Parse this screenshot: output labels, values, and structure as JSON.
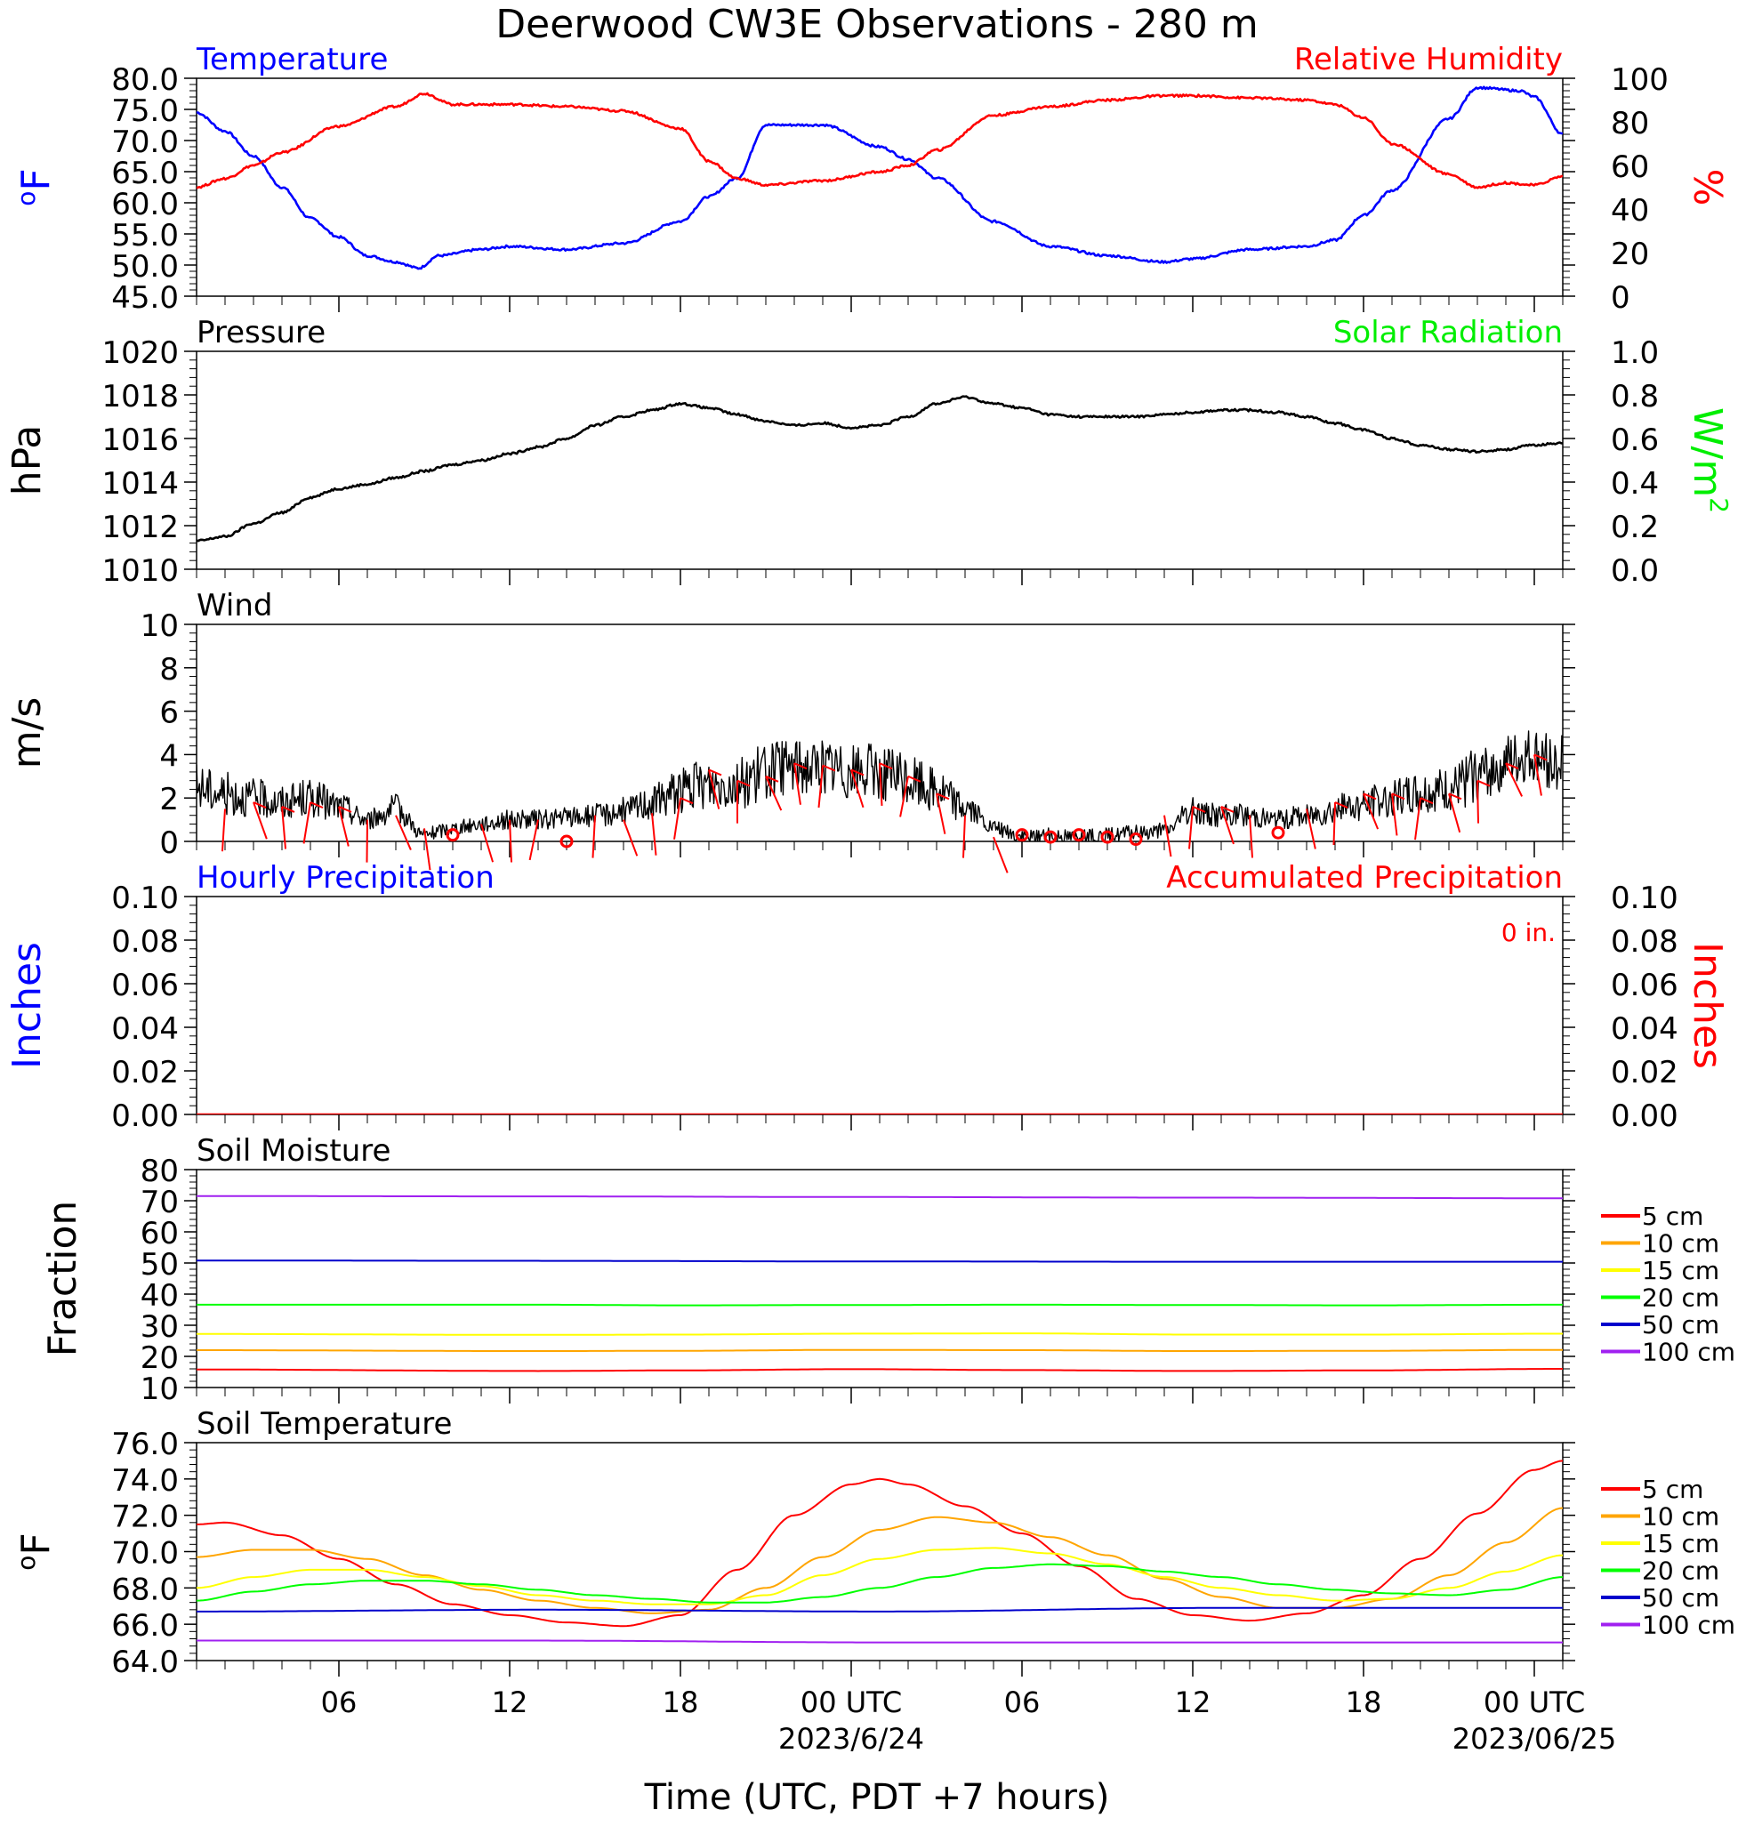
{
  "title": "Deerwood CW3E Observations - 280 m",
  "x_axis": {
    "label": "Time (UTC, PDT +7 hours)",
    "tick_labels": [
      "06",
      "12",
      "18",
      "00 UTC",
      "06",
      "12",
      "18",
      "00 UTC"
    ],
    "tick_hours": [
      6,
      12,
      18,
      24,
      30,
      36,
      42,
      48
    ],
    "date_labels": [
      "2023/6/24",
      "2023/06/25"
    ],
    "date_hours": [
      24,
      48
    ]
  },
  "colors": {
    "blue": "#0000ff",
    "red": "#ff0000",
    "green": "#00ee00",
    "black": "#000000",
    "soil_5cm": "#ff0000",
    "soil_10cm": "#ffa500",
    "soil_15cm": "#ffff00",
    "soil_20cm": "#00ff00",
    "soil_50cm": "#0000cc",
    "soil_100cm": "#a020f0"
  },
  "chart_data": [
    {
      "type": "line",
      "panel": "temperature-humidity",
      "left_title": "Temperature",
      "right_title": "Relative Humidity",
      "ylabel_left": "oF",
      "ylabel_right": "%",
      "ylim_left": [
        45,
        80
      ],
      "ylim_right": [
        0,
        100
      ],
      "yticks_left": [
        "80.0",
        "75.0",
        "70.0",
        "65.0",
        "60.0",
        "55.0",
        "50.0",
        "45.0"
      ],
      "yticks_right": [
        "100",
        "80",
        "60",
        "40",
        "20",
        "0"
      ],
      "series": [
        {
          "name": "Temperature",
          "axis": "left",
          "color": "#0000ff",
          "x": [
            1,
            2,
            3,
            4,
            5,
            6,
            7,
            8,
            8.8,
            9.5,
            11,
            12,
            14,
            16,
            18,
            19,
            20,
            21,
            23,
            25,
            26,
            27,
            29,
            31,
            33,
            35,
            36,
            38,
            40,
            41,
            42,
            43,
            45,
            46,
            47.5,
            48,
            49
          ],
          "values": [
            74.5,
            71.5,
            67.5,
            62.5,
            57.5,
            54.5,
            51.5,
            50.5,
            49.5,
            51.5,
            52.5,
            53,
            52.5,
            53.5,
            57,
            61,
            64,
            72.5,
            72.5,
            69,
            67,
            64,
            57,
            53,
            51.5,
            50.5,
            51,
            52.5,
            53,
            54,
            58,
            62,
            73.5,
            78.5,
            78,
            77,
            71
          ]
        },
        {
          "name": "Relative Humidity",
          "axis": "right",
          "color": "#ff0000",
          "x": [
            1,
            2,
            3,
            4,
            6,
            8,
            9,
            10,
            12,
            14,
            16,
            18,
            19,
            20,
            21,
            23,
            25,
            26,
            27,
            29,
            31,
            33,
            35,
            36,
            38,
            40,
            41,
            42,
            43,
            45,
            46,
            47,
            48,
            49
          ],
          "values": [
            50,
            54,
            60,
            66,
            78,
            87,
            93,
            88,
            88,
            87,
            85,
            77,
            62,
            54,
            51,
            53,
            57,
            60,
            67,
            83,
            87,
            90,
            92,
            92,
            91,
            90,
            88,
            82,
            70,
            56,
            50,
            52,
            51,
            55
          ]
        }
      ]
    },
    {
      "type": "line",
      "panel": "pressure-solar",
      "left_title": "Pressure",
      "right_title": "Solar Radiation",
      "ylabel_left": "hPa",
      "ylabel_right": "W/m",
      "ylabel_right_sup": "2",
      "ylim_left": [
        1010,
        1020
      ],
      "ylim_right": [
        0,
        1
      ],
      "yticks_left": [
        "1020",
        "1018",
        "1016",
        "1014",
        "1012",
        "1010"
      ],
      "yticks_right": [
        "1.0",
        "0.8",
        "0.6",
        "0.4",
        "0.2",
        "0.0"
      ],
      "series": [
        {
          "name": "Pressure",
          "axis": "left",
          "color": "#000000",
          "x": [
            1,
            2,
            3,
            4,
            5,
            6,
            7,
            8,
            9,
            10,
            11,
            12,
            13,
            14,
            15,
            16,
            17,
            18,
            19,
            20,
            21,
            22,
            23,
            24,
            25,
            26,
            27,
            28,
            29,
            30,
            31,
            32,
            33,
            34,
            35,
            36,
            37,
            38,
            39,
            40,
            41,
            42,
            43,
            44,
            45,
            46,
            47,
            48,
            49
          ],
          "values": [
            1011.3,
            1011.5,
            1012.1,
            1012.6,
            1013.3,
            1013.7,
            1013.9,
            1014.2,
            1014.5,
            1014.8,
            1015.0,
            1015.3,
            1015.6,
            1016.0,
            1016.6,
            1017.0,
            1017.3,
            1017.6,
            1017.4,
            1017.1,
            1016.8,
            1016.6,
            1016.7,
            1016.5,
            1016.6,
            1017.0,
            1017.6,
            1017.9,
            1017.6,
            1017.4,
            1017.1,
            1017.0,
            1017.0,
            1017.0,
            1017.1,
            1017.2,
            1017.3,
            1017.3,
            1017.2,
            1017.0,
            1016.7,
            1016.4,
            1016.0,
            1015.7,
            1015.5,
            1015.4,
            1015.5,
            1015.7,
            1015.8
          ]
        }
      ]
    },
    {
      "type": "line",
      "panel": "wind",
      "left_title": "Wind",
      "ylabel_left": "m/s",
      "ylim_left": [
        0,
        10
      ],
      "yticks_left": [
        "10",
        "8",
        "6",
        "4",
        "2",
        "0"
      ],
      "series": [
        {
          "name": "Wind",
          "axis": "left",
          "color": "#000000",
          "x": [
            1,
            2,
            3,
            4,
            5,
            6,
            7,
            8,
            9,
            10,
            11,
            12,
            13,
            14,
            15,
            16,
            17,
            18,
            19,
            20,
            21,
            22,
            23,
            24,
            25,
            26,
            27,
            28,
            29,
            30,
            31,
            32,
            33,
            34,
            35,
            36,
            37,
            38,
            39,
            40,
            41,
            42,
            43,
            44,
            45,
            46,
            47,
            48,
            49
          ],
          "values": [
            2.5,
            2.2,
            2.0,
            1.8,
            2.0,
            1.6,
            1.0,
            1.5,
            0.3,
            0.6,
            0.8,
            1.0,
            1.0,
            1.1,
            1.2,
            1.4,
            1.8,
            2.4,
            2.6,
            2.7,
            3.2,
            3.5,
            3.4,
            3.2,
            3.2,
            2.8,
            2.4,
            1.6,
            0.6,
            0.2,
            0.3,
            0.2,
            0.3,
            0.4,
            0.5,
            1.4,
            1.2,
            1.2,
            1.0,
            1.2,
            1.5,
            1.7,
            2.0,
            2.2,
            2.3,
            3.0,
            3.6,
            3.9,
            3.6
          ]
        },
        {
          "name": "Wind barbs",
          "type": "barbs",
          "color": "#ff0000",
          "x": [
            2,
            3,
            4,
            5,
            6,
            7,
            8,
            9,
            10,
            11,
            12,
            13,
            14,
            15,
            16,
            17,
            18,
            19,
            20,
            21,
            22,
            23,
            24,
            25,
            26,
            27,
            28,
            29,
            30,
            31,
            32,
            33,
            34,
            35,
            36,
            37,
            38,
            39,
            40,
            41,
            42,
            43,
            44,
            45,
            46,
            47,
            48
          ],
          "speed": [
            1.5,
            1.8,
            1.6,
            1.8,
            1.6,
            1.0,
            1.2,
            0.6,
            0.3,
            0.8,
            1.0,
            1.0,
            0.0,
            1.2,
            1.0,
            1.3,
            2.0,
            3.3,
            2.8,
            3.0,
            3.6,
            3.5,
            3.3,
            3.6,
            3.0,
            2.2,
            1.2,
            0.2,
            0.3,
            0.2,
            0.3,
            0.2,
            0.1,
            1.2,
            1.6,
            1.6,
            1.2,
            0.4,
            1.5,
            1.8,
            2.2,
            2.2,
            2.0,
            2.2,
            2.8,
            3.6,
            4.0
          ],
          "calm": [
            10,
            14,
            30,
            31,
            32,
            33,
            34,
            39
          ]
        }
      ]
    },
    {
      "type": "line",
      "panel": "precipitation",
      "left_title": "Hourly Precipitation",
      "right_title": "Accumulated Precipitation",
      "annotation": "0 in.",
      "ylabel_left": "Inches",
      "ylabel_right": "Inches",
      "ylim_left": [
        0,
        0.1
      ],
      "ylim_right": [
        0,
        0.1
      ],
      "yticks_left": [
        "0.10",
        "0.08",
        "0.06",
        "0.04",
        "0.02",
        "0.00"
      ],
      "yticks_right": [
        "0.10",
        "0.08",
        "0.06",
        "0.04",
        "0.02",
        "0.00"
      ],
      "series": [
        {
          "name": "Accumulated Precipitation",
          "axis": "right",
          "color": "#ff0000",
          "x": [
            1,
            49
          ],
          "values": [
            0,
            0
          ]
        }
      ]
    },
    {
      "type": "line",
      "panel": "soil-moisture",
      "left_title": "Soil Moisture",
      "ylabel_left": "Fraction",
      "ylim_left": [
        10,
        80
      ],
      "yticks_left": [
        "80",
        "70",
        "60",
        "50",
        "40",
        "30",
        "20",
        "10"
      ],
      "legend": [
        "5 cm",
        "10 cm",
        "15 cm",
        "20 cm",
        "50 cm",
        "100 cm"
      ],
      "series": [
        {
          "name": "5 cm",
          "color": "#ff0000",
          "x": [
            1,
            13,
            18,
            24,
            30,
            36,
            42,
            49
          ],
          "values": [
            15.8,
            15.3,
            15.5,
            15.9,
            15.6,
            15.3,
            15.5,
            16.0
          ]
        },
        {
          "name": "10 cm",
          "color": "#ffa500",
          "x": [
            1,
            13,
            18,
            24,
            30,
            36,
            42,
            49
          ],
          "values": [
            22.0,
            21.7,
            21.8,
            22.1,
            22.0,
            21.7,
            21.8,
            22.1
          ]
        },
        {
          "name": "15 cm",
          "color": "#ffff00",
          "x": [
            1,
            13,
            18,
            24,
            30,
            36,
            42,
            49
          ],
          "values": [
            27.2,
            26.9,
            27.0,
            27.3,
            27.4,
            27.0,
            27.0,
            27.3
          ]
        },
        {
          "name": "20 cm",
          "color": "#00ff00",
          "x": [
            1,
            13,
            18,
            24,
            30,
            36,
            42,
            49
          ],
          "values": [
            36.6,
            36.6,
            36.4,
            36.5,
            36.6,
            36.5,
            36.4,
            36.6
          ]
        },
        {
          "name": "50 cm",
          "color": "#0000cc",
          "x": [
            1,
            13,
            24,
            36,
            49
          ],
          "values": [
            50.8,
            50.7,
            50.5,
            50.4,
            50.4
          ]
        },
        {
          "name": "100 cm",
          "color": "#a020f0",
          "x": [
            1,
            13,
            24,
            36,
            49
          ],
          "values": [
            71.5,
            71.4,
            71.2,
            71.0,
            70.8
          ]
        }
      ]
    },
    {
      "type": "line",
      "panel": "soil-temperature",
      "left_title": "Soil Temperature",
      "ylabel_left": "oF",
      "ylim_left": [
        64,
        76
      ],
      "yticks_left": [
        "76.0",
        "74.0",
        "72.0",
        "70.0",
        "68.0",
        "66.0",
        "64.0"
      ],
      "legend": [
        "5 cm",
        "10 cm",
        "15 cm",
        "20 cm",
        "50 cm",
        "100 cm"
      ],
      "series": [
        {
          "name": "5 cm",
          "color": "#ff0000",
          "x": [
            1,
            2,
            4,
            6,
            8,
            10,
            12,
            14,
            16,
            18,
            20,
            22,
            24,
            25,
            26,
            28,
            30,
            32,
            34,
            36,
            38,
            40,
            42,
            44,
            46,
            48,
            49
          ],
          "values": [
            71.5,
            71.6,
            70.9,
            69.6,
            68.2,
            67.1,
            66.5,
            66.1,
            65.9,
            66.5,
            69.0,
            72.0,
            73.7,
            74.0,
            73.7,
            72.5,
            71.0,
            69.2,
            67.4,
            66.5,
            66.2,
            66.6,
            67.6,
            69.6,
            72.1,
            74.5,
            75.0
          ]
        },
        {
          "name": "10 cm",
          "color": "#ffa500",
          "x": [
            1,
            3,
            5,
            7,
            9,
            11,
            13,
            15,
            17,
            19,
            21,
            23,
            25,
            27,
            29,
            31,
            33,
            35,
            37,
            39,
            41,
            43,
            45,
            47,
            49
          ],
          "values": [
            69.7,
            70.1,
            70.1,
            69.6,
            68.7,
            67.9,
            67.3,
            66.9,
            66.6,
            66.8,
            68.0,
            69.7,
            71.2,
            71.9,
            71.6,
            70.8,
            69.8,
            68.5,
            67.5,
            66.9,
            66.9,
            67.4,
            68.7,
            70.5,
            72.4
          ]
        },
        {
          "name": "15 cm",
          "color": "#ffff00",
          "x": [
            1,
            3,
            5,
            7,
            9,
            11,
            13,
            15,
            17,
            19,
            21,
            23,
            25,
            27,
            29,
            31,
            33,
            35,
            37,
            39,
            41,
            43,
            45,
            47,
            49
          ],
          "values": [
            68.0,
            68.6,
            69.0,
            69.0,
            68.6,
            68.1,
            67.6,
            67.3,
            67.1,
            67.1,
            67.6,
            68.7,
            69.6,
            70.1,
            70.2,
            69.9,
            69.3,
            68.6,
            68.0,
            67.6,
            67.3,
            67.4,
            68.0,
            68.9,
            69.8
          ]
        },
        {
          "name": "20 cm",
          "color": "#00ff00",
          "x": [
            1,
            3,
            5,
            7,
            9,
            11,
            13,
            15,
            17,
            19,
            21,
            23,
            25,
            27,
            29,
            31,
            33,
            35,
            37,
            39,
            41,
            43,
            45,
            47,
            49
          ],
          "values": [
            67.3,
            67.8,
            68.2,
            68.4,
            68.4,
            68.2,
            67.9,
            67.6,
            67.4,
            67.2,
            67.2,
            67.5,
            68.0,
            68.6,
            69.1,
            69.3,
            69.2,
            68.9,
            68.6,
            68.2,
            67.9,
            67.7,
            67.6,
            67.9,
            68.6
          ]
        },
        {
          "name": "50 cm",
          "color": "#0000cc",
          "x": [
            1,
            13,
            25,
            37,
            49
          ],
          "values": [
            66.7,
            66.8,
            66.7,
            66.9,
            66.9
          ]
        },
        {
          "name": "100 cm",
          "color": "#a020f0",
          "x": [
            1,
            13,
            25,
            37,
            49
          ],
          "values": [
            65.1,
            65.1,
            65.0,
            65.0,
            65.0
          ]
        }
      ]
    }
  ]
}
